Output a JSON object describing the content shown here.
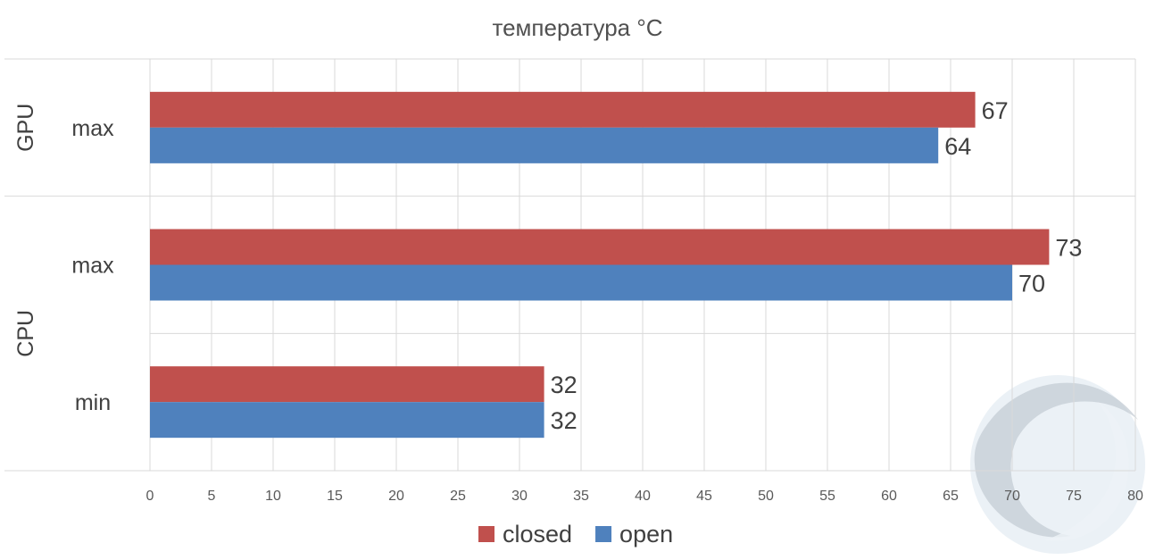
{
  "chart_data": {
    "type": "bar",
    "orientation": "horizontal",
    "title": "температура °C",
    "groups": [
      {
        "name": "GPU",
        "categories": [
          "max"
        ]
      },
      {
        "name": "CPU",
        "categories": [
          "max",
          "min"
        ]
      }
    ],
    "categories": [
      "GPU max",
      "CPU max",
      "CPU min"
    ],
    "series": [
      {
        "name": "closed",
        "color": "#C0504D",
        "values": [
          67,
          73,
          32
        ]
      },
      {
        "name": "open",
        "color": "#4F81BD",
        "values": [
          64,
          70,
          32
        ]
      }
    ],
    "xlim": [
      0,
      80
    ],
    "xticks": [
      "0",
      "5",
      "10",
      "15",
      "20",
      "25",
      "30",
      "35",
      "40",
      "45",
      "50",
      "55",
      "60",
      "65",
      "70",
      "75",
      "80"
    ],
    "grid": true,
    "legend_position": "bottom",
    "data_labels": true
  }
}
